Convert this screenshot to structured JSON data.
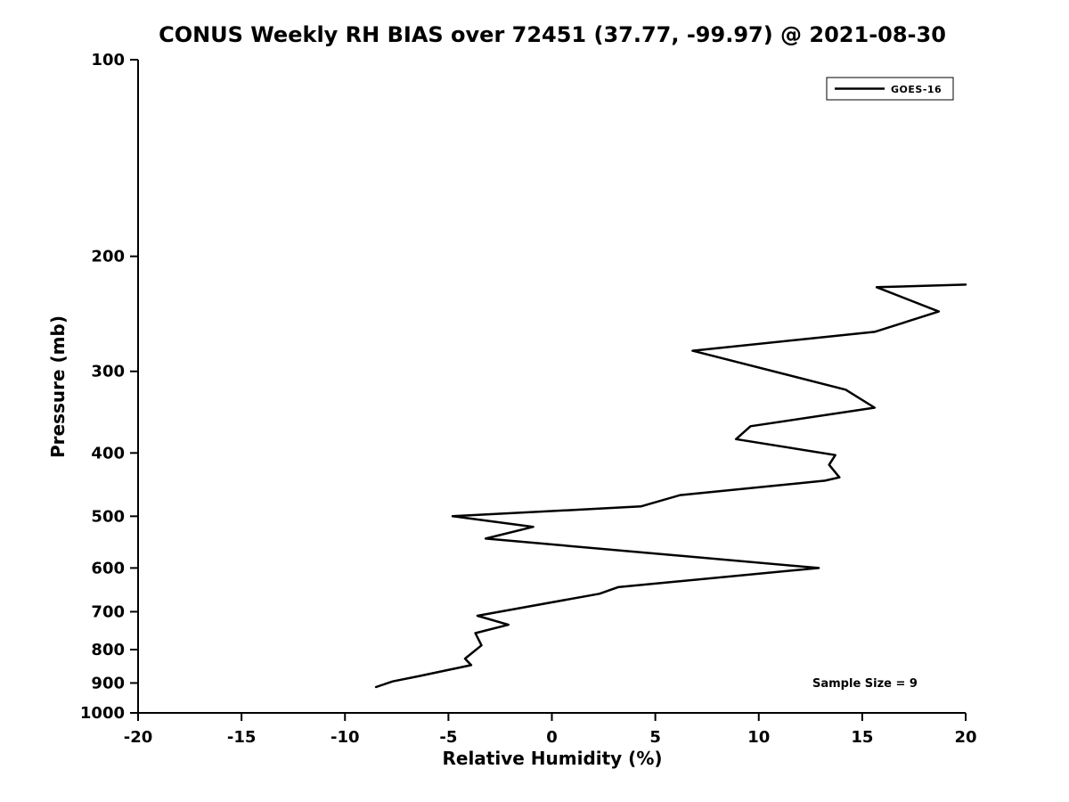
{
  "figure": {
    "background": "#ffffff",
    "line_color": "#000000"
  },
  "chart_data": {
    "type": "line",
    "title": "CONUS Weekly RH BIAS over 72451 (37.77, -99.97) @ 2021-08-30",
    "xlabel": "Relative Humidity (%)",
    "ylabel": "Pressure (mb)",
    "xlim": [
      -20,
      20
    ],
    "ylim": [
      100,
      1000
    ],
    "y_scale": "log",
    "y_inverted": true,
    "grid": false,
    "x_ticks": [
      -20,
      -15,
      -10,
      -5,
      0,
      5,
      10,
      15,
      20
    ],
    "y_ticks": [
      100,
      200,
      300,
      400,
      500,
      600,
      700,
      800,
      900,
      1000
    ],
    "legend": {
      "position": "top-right",
      "entries": [
        {
          "label": "GOES-16",
          "color": "#000000"
        }
      ]
    },
    "annotation": "Sample Size = 9",
    "series": [
      {
        "name": "GOES-16",
        "color": "#000000",
        "line_width": 2.5,
        "points": [
          [
            20.0,
            221
          ],
          [
            15.7,
            223
          ],
          [
            18.7,
            243
          ],
          [
            15.6,
            261
          ],
          [
            6.8,
            279
          ],
          [
            14.2,
            320
          ],
          [
            15.6,
            341
          ],
          [
            9.6,
            364
          ],
          [
            8.9,
            381
          ],
          [
            13.7,
            403
          ],
          [
            13.4,
            417
          ],
          [
            13.9,
            436
          ],
          [
            13.2,
            441
          ],
          [
            6.2,
            464
          ],
          [
            4.3,
            483
          ],
          [
            -4.8,
            500
          ],
          [
            -0.9,
            519
          ],
          [
            -3.2,
            541
          ],
          [
            12.9,
            600
          ],
          [
            3.2,
            642
          ],
          [
            2.3,
            657
          ],
          [
            -3.6,
            710
          ],
          [
            -2.1,
            733
          ],
          [
            -3.7,
            755
          ],
          [
            -3.4,
            788
          ],
          [
            -4.2,
            826
          ],
          [
            -3.9,
            845
          ],
          [
            -6.4,
            878
          ],
          [
            -7.7,
            895
          ],
          [
            -8.5,
            913
          ]
        ]
      }
    ]
  }
}
